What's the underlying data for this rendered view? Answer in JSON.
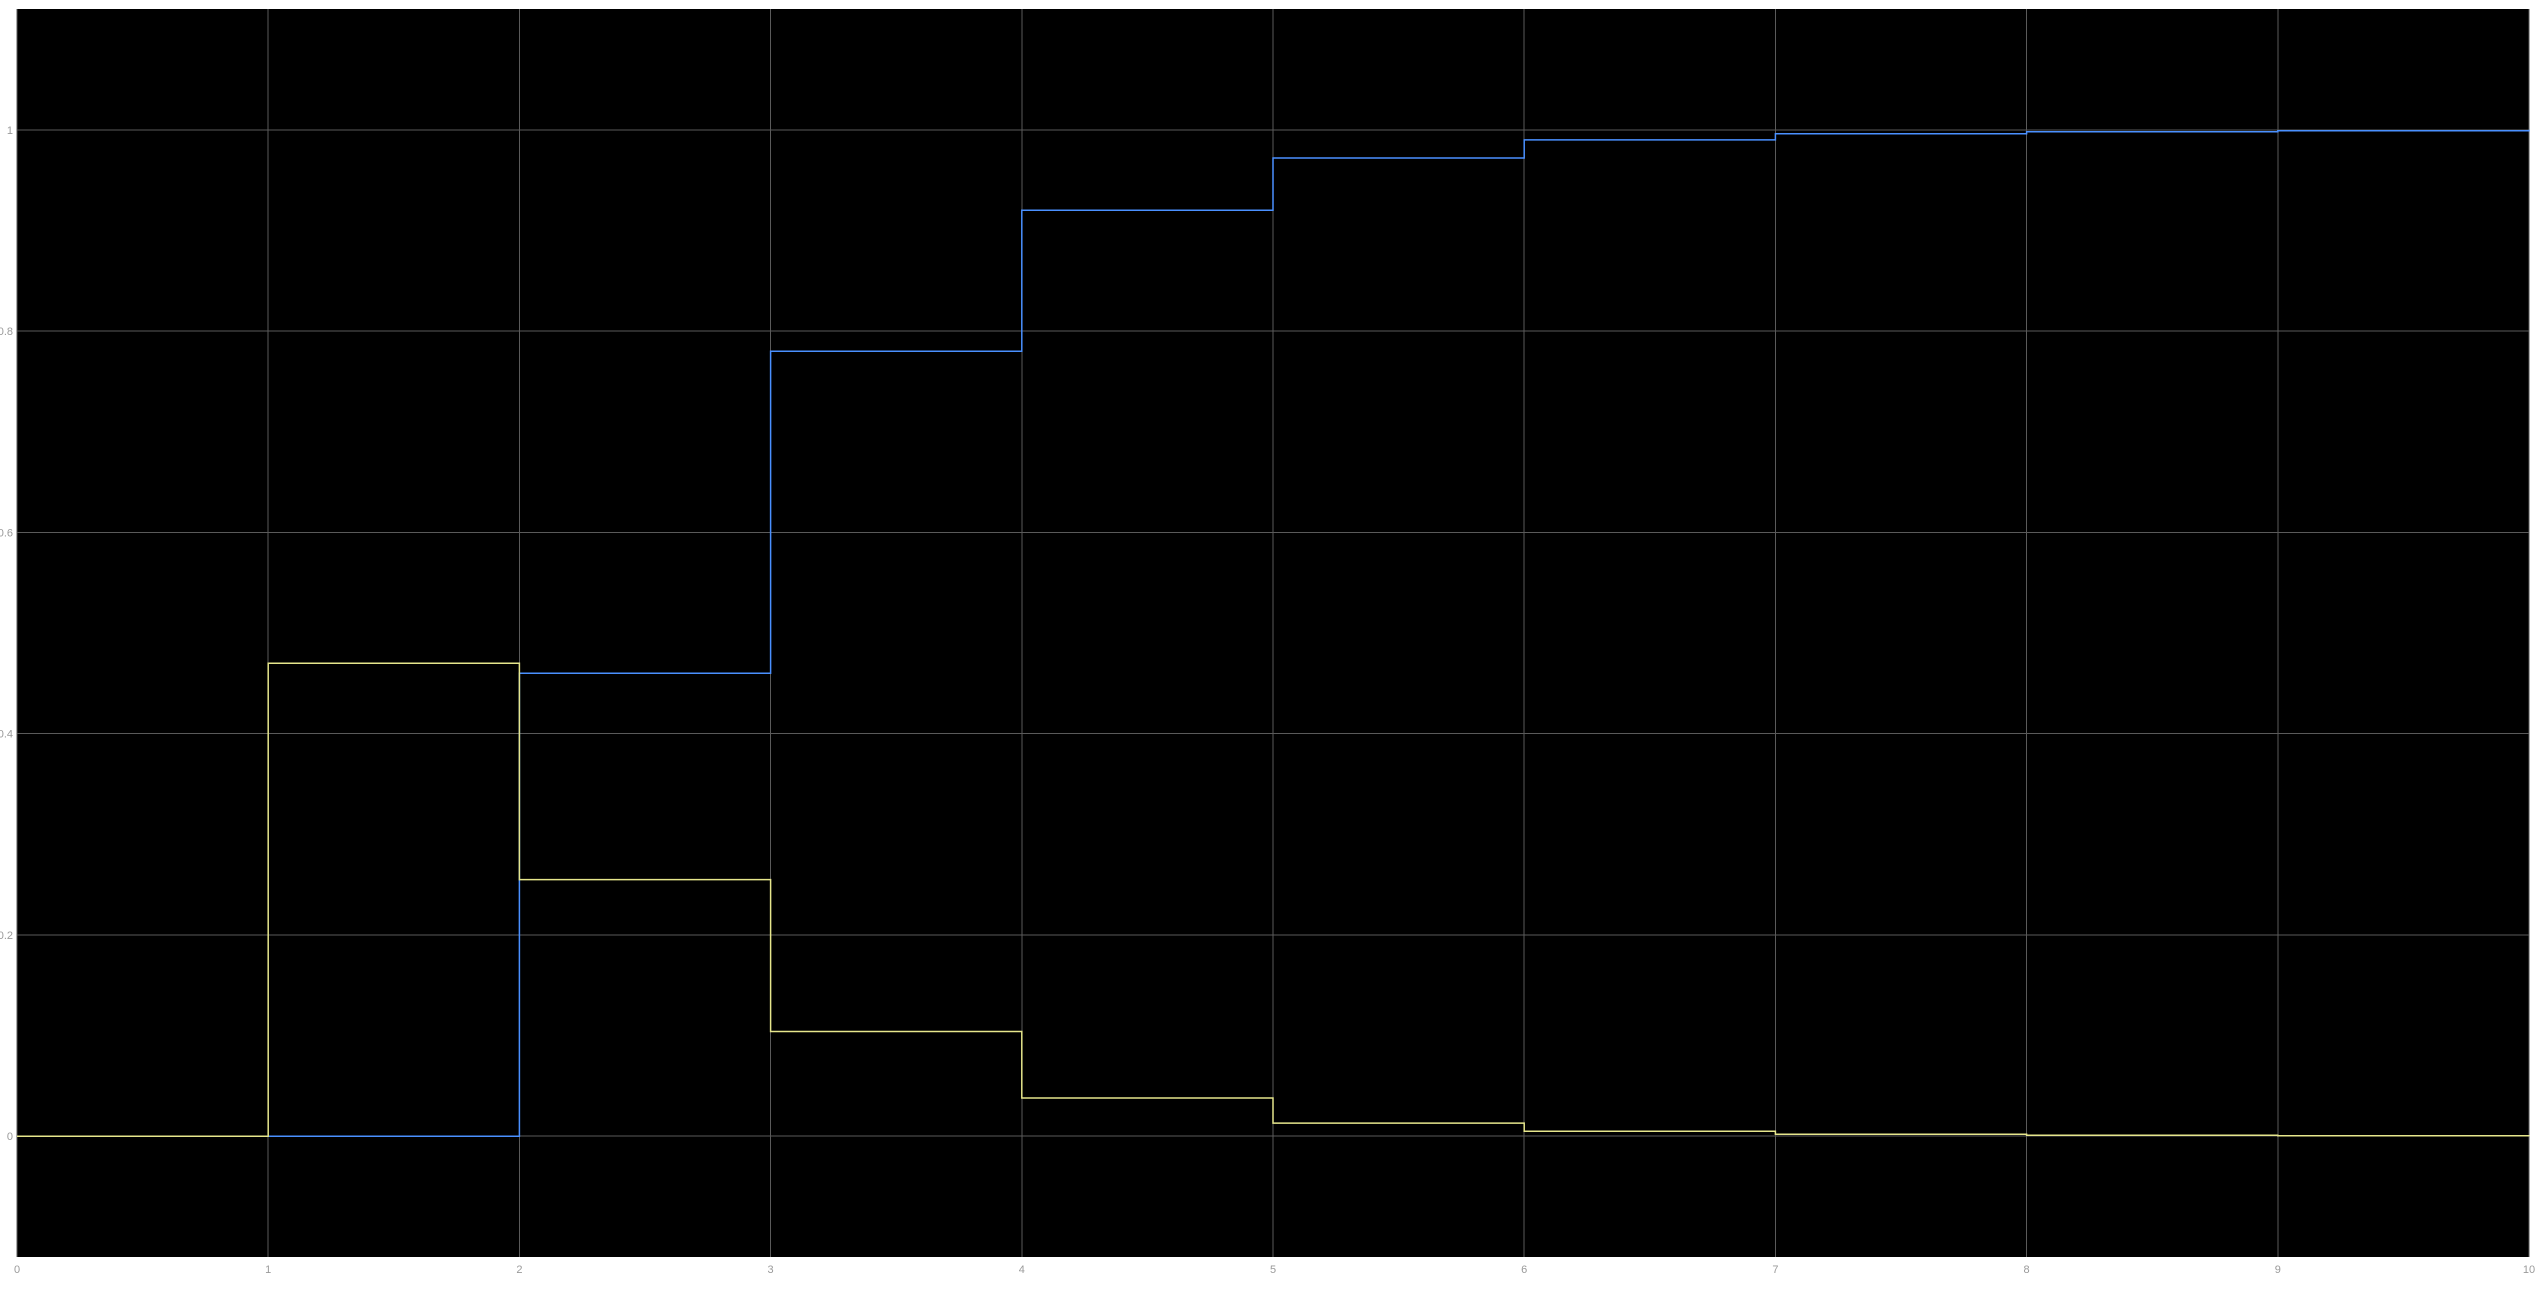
{
  "chart_data": {
    "type": "line",
    "step": true,
    "grid": true,
    "background": "#000000",
    "axes_color": "#9a9a9a",
    "grid_color": "#5a5a5a",
    "xlim": [
      0,
      10
    ],
    "ylim": [
      -0.12,
      1.12
    ],
    "x_ticks": [
      {
        "value": 0,
        "label": "0"
      },
      {
        "value": 1,
        "label": "1"
      },
      {
        "value": 2,
        "label": "2"
      },
      {
        "value": 3,
        "label": "3"
      },
      {
        "value": 4,
        "label": "4"
      },
      {
        "value": 5,
        "label": "5"
      },
      {
        "value": 6,
        "label": "6"
      },
      {
        "value": 7,
        "label": "7"
      },
      {
        "value": 8,
        "label": "8"
      },
      {
        "value": 9,
        "label": "9"
      },
      {
        "value": 10,
        "label": "10"
      }
    ],
    "y_ticks": [
      {
        "value": 0,
        "label": "0"
      },
      {
        "value": 0.2,
        "label": "0.2"
      },
      {
        "value": 0.4,
        "label": "0.4"
      },
      {
        "value": 0.6,
        "label": "0.6"
      },
      {
        "value": 0.8,
        "label": "0.8"
      },
      {
        "value": 1,
        "label": "1"
      }
    ],
    "series": [
      {
        "color": "#4a90ff",
        "x": [
          0,
          1,
          2,
          3,
          4,
          5,
          6,
          7,
          8,
          9,
          10
        ],
        "y": [
          0,
          0,
          0.46,
          0.78,
          0.92,
          0.972,
          0.99,
          0.996,
          0.998,
          0.999,
          1.0
        ]
      },
      {
        "color": "#e6e68c",
        "x": [
          0,
          1,
          2,
          3,
          4,
          5,
          6,
          7,
          8,
          9,
          10
        ],
        "y": [
          0,
          0.47,
          0.255,
          0.104,
          0.038,
          0.013,
          0.005,
          0.002,
          0.001,
          0.0005,
          0.0
        ]
      }
    ]
  }
}
